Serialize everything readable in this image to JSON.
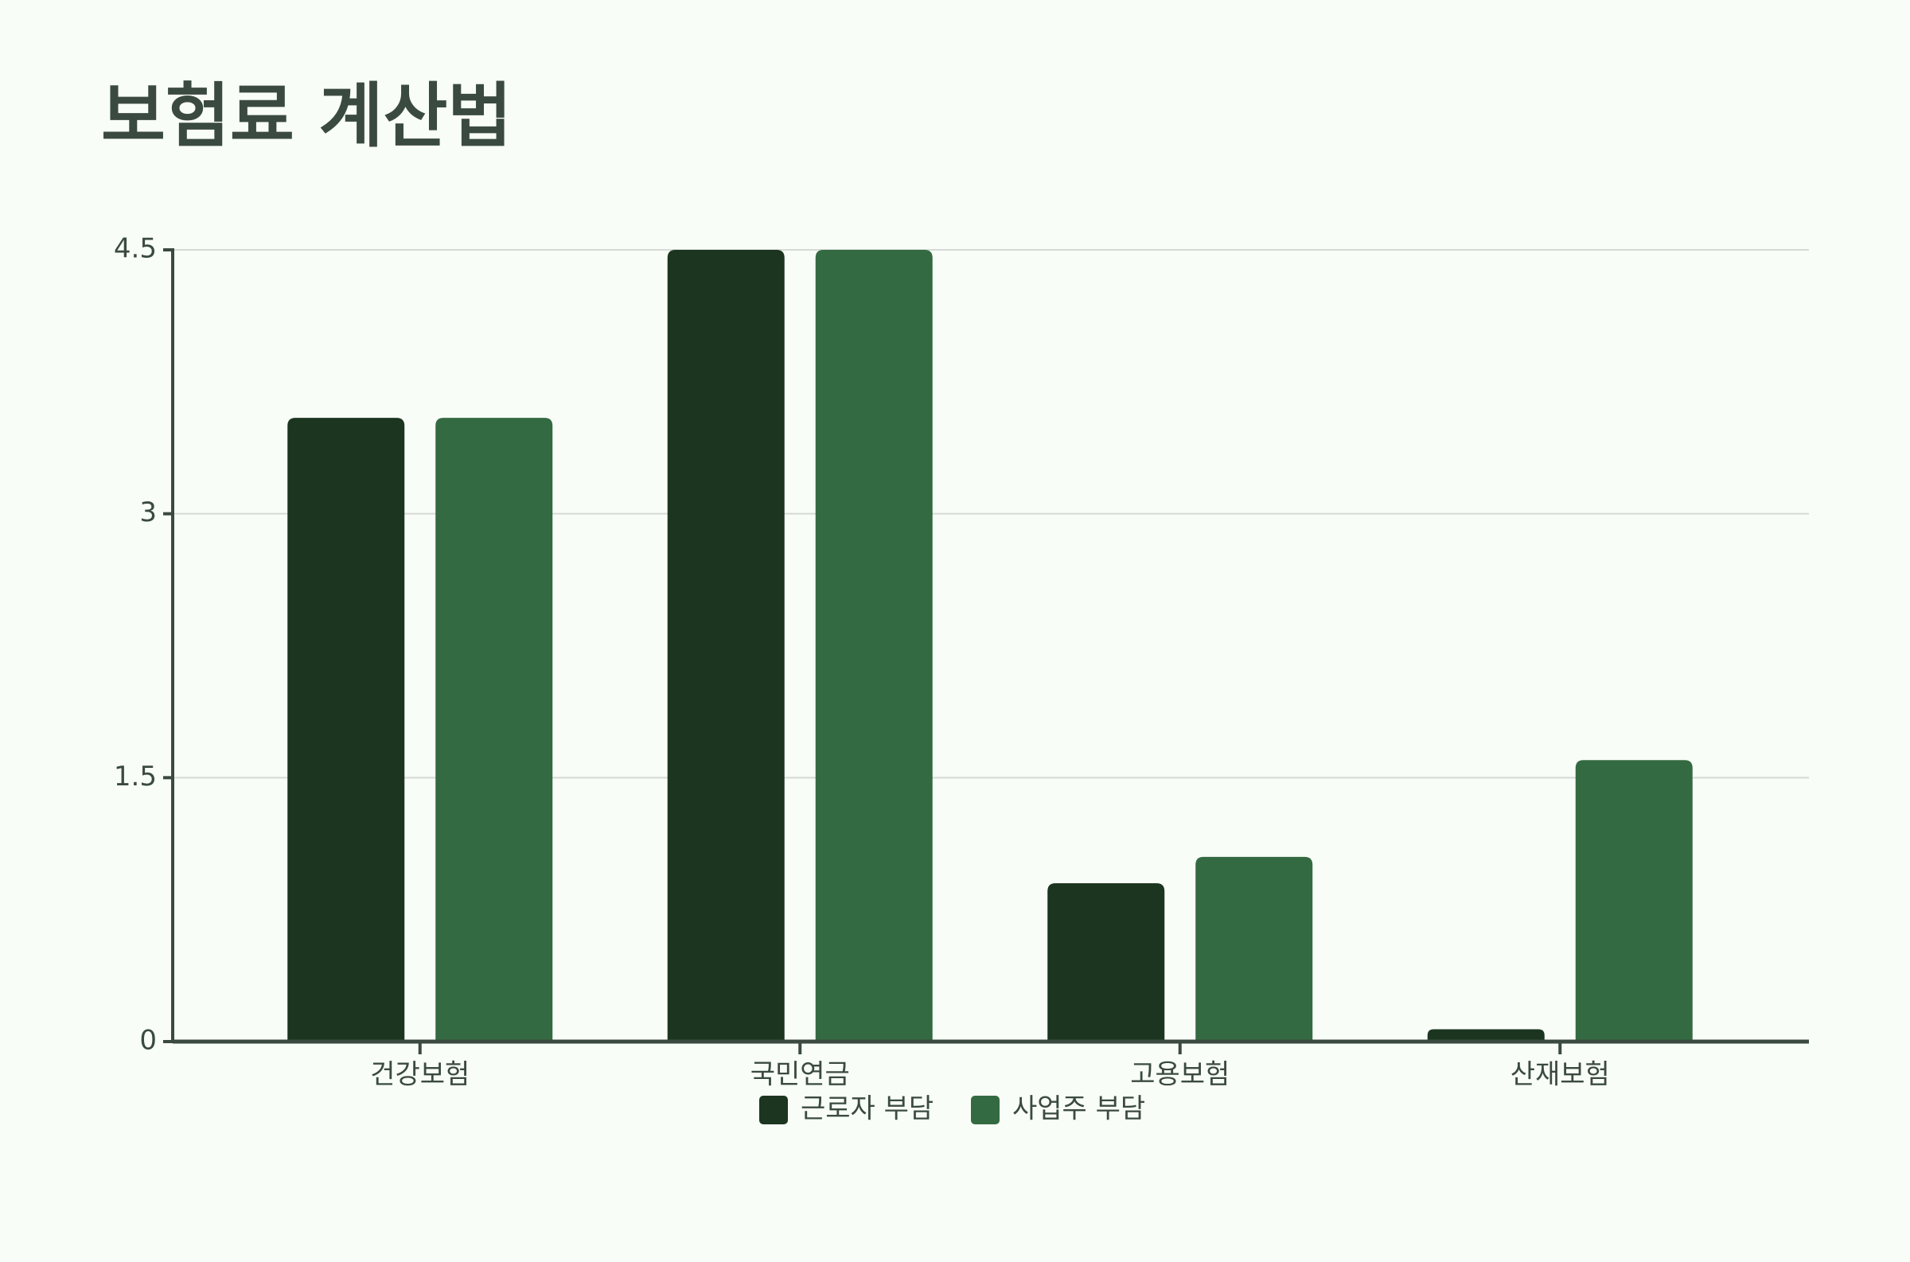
{
  "chart_data": {
    "type": "bar",
    "title": "보험료 계산법",
    "categories": [
      "건강보험",
      "국민연금",
      "고용보험",
      "산재보험"
    ],
    "series": [
      {
        "name": "근로자 부담",
        "color": "#1c3520",
        "values": [
          3.545,
          4.5,
          0.9,
          0.07
        ]
      },
      {
        "name": "사업주 부담",
        "color": "#346a41",
        "values": [
          3.545,
          4.5,
          1.05,
          1.6
        ]
      }
    ],
    "ylim": [
      0,
      4.5
    ],
    "yticks": [
      0,
      1.5,
      3,
      4.5
    ],
    "grid": true
  }
}
